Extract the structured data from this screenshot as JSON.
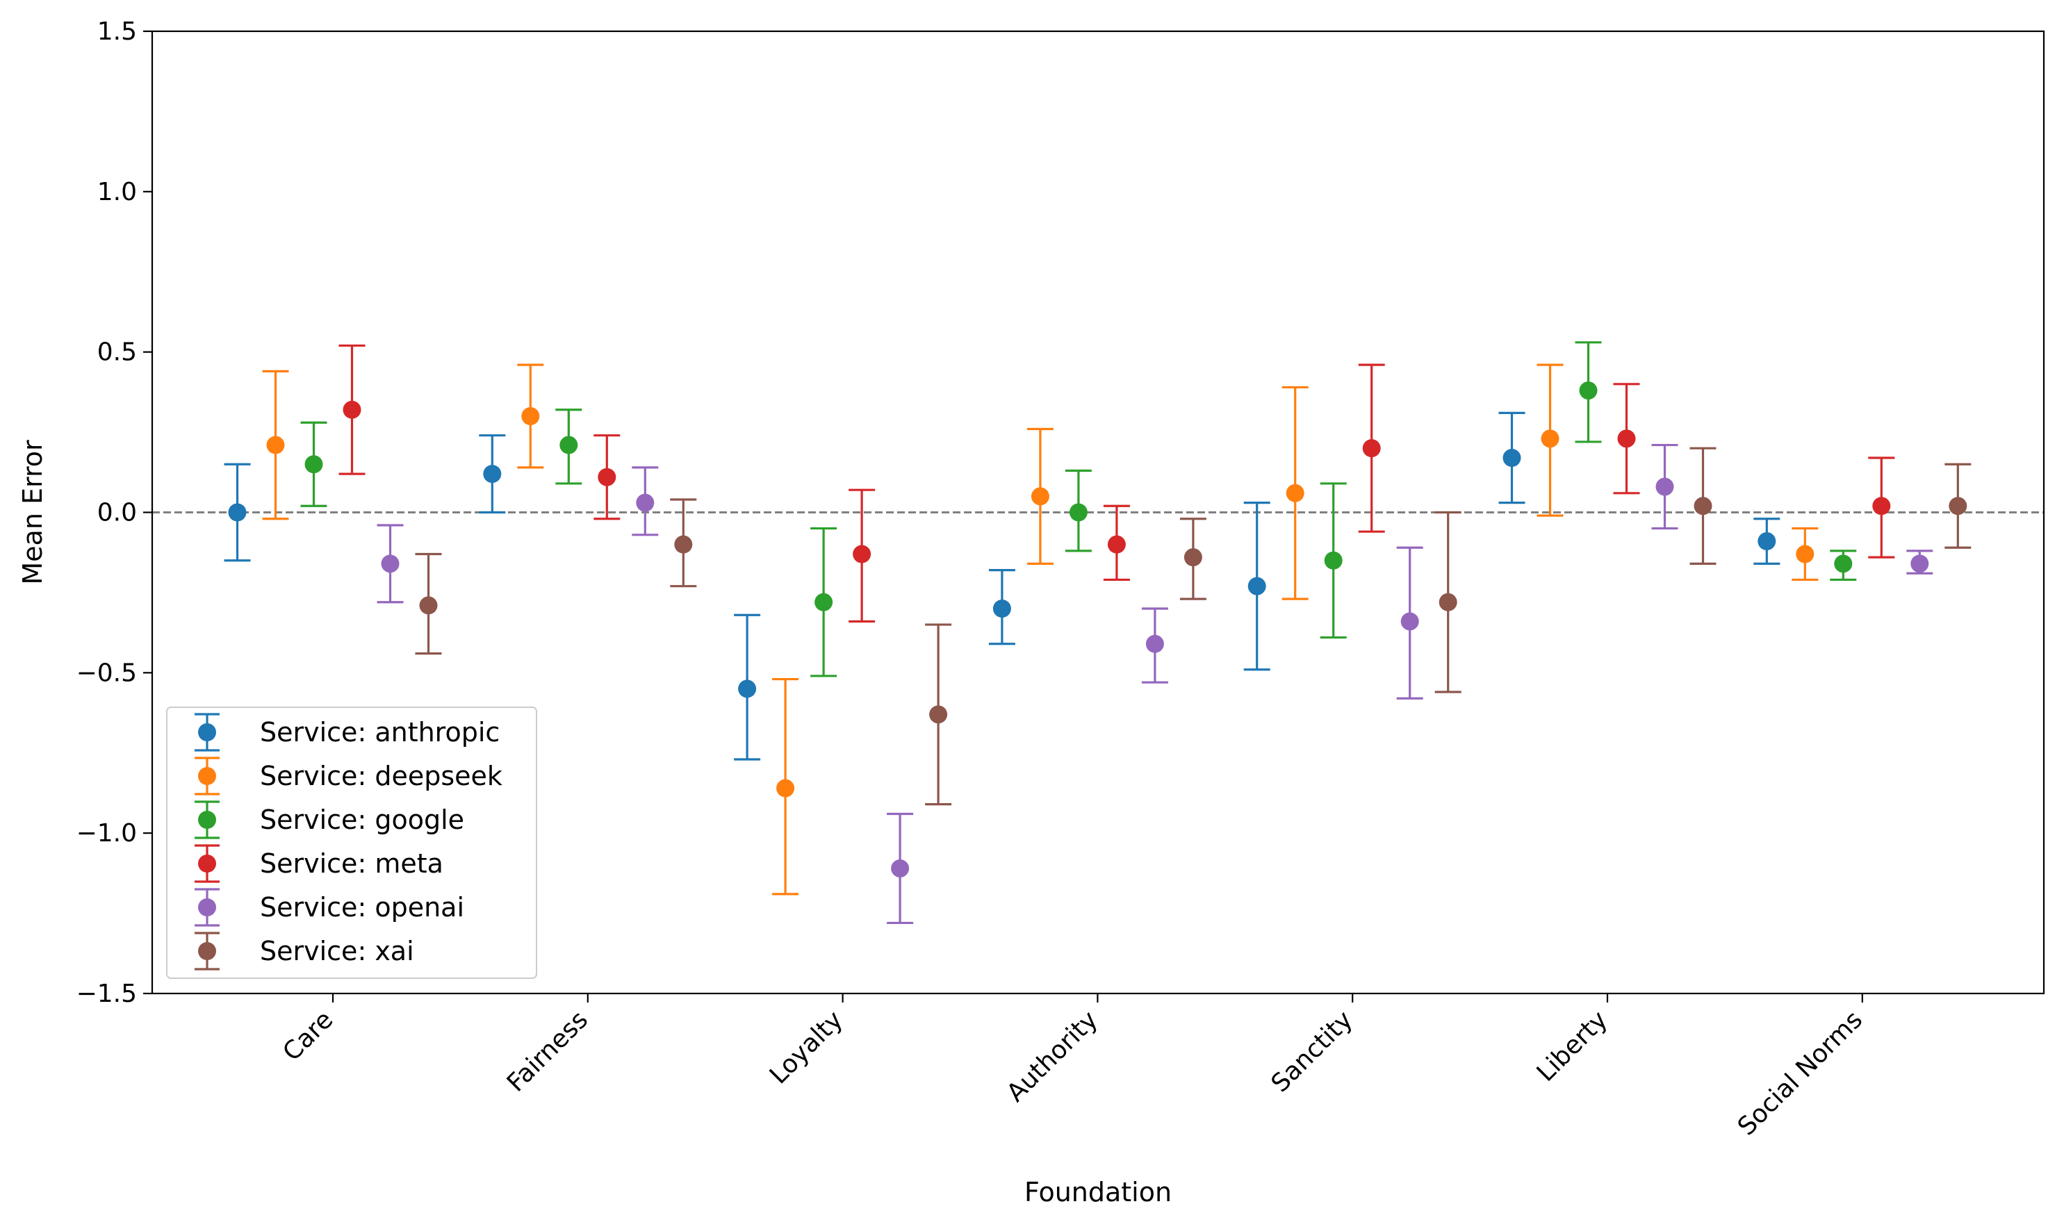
{
  "chart_data": {
    "type": "scatter",
    "subtype": "errorbar",
    "title": "",
    "xlabel": "Foundation",
    "ylabel": "Mean Error",
    "ylim": [
      -1.5,
      1.5
    ],
    "yticks": [
      -1.5,
      -1.0,
      -0.5,
      0.0,
      0.5,
      1.0,
      1.5
    ],
    "ytick_labels": [
      "−1.5",
      "−1.0",
      "−0.5",
      "0.0",
      "0.5",
      "1.0",
      "1.5"
    ],
    "categories": [
      "Care",
      "Fairness",
      "Loyalty",
      "Authority",
      "Sanctity",
      "Liberty",
      "Social Norms"
    ],
    "reference_line": {
      "y": 0.0,
      "style": "dashed",
      "color": "#808080"
    },
    "legend_position": "lower-left",
    "series": [
      {
        "name": "Service: anthropic",
        "color": "#1f77b4",
        "values": [
          0.0,
          0.12,
          -0.55,
          -0.3,
          -0.23,
          0.17,
          -0.09
        ],
        "lower": [
          -0.15,
          0.0,
          -0.77,
          -0.41,
          -0.49,
          0.03,
          -0.16
        ],
        "upper": [
          0.15,
          0.24,
          -0.32,
          -0.18,
          0.03,
          0.31,
          -0.02
        ]
      },
      {
        "name": "Service: deepseek",
        "color": "#ff7f0e",
        "values": [
          0.21,
          0.3,
          -0.86,
          0.05,
          0.06,
          0.23,
          -0.13
        ],
        "lower": [
          -0.02,
          0.14,
          -1.19,
          -0.16,
          -0.27,
          -0.01,
          -0.21
        ],
        "upper": [
          0.44,
          0.46,
          -0.52,
          0.26,
          0.39,
          0.46,
          -0.05
        ]
      },
      {
        "name": "Service: google",
        "color": "#2ca02c",
        "values": [
          0.15,
          0.21,
          -0.28,
          0.0,
          -0.15,
          0.38,
          -0.16
        ],
        "lower": [
          0.02,
          0.09,
          -0.51,
          -0.12,
          -0.39,
          0.22,
          -0.21
        ],
        "upper": [
          0.28,
          0.32,
          -0.05,
          0.13,
          0.09,
          0.53,
          -0.12
        ]
      },
      {
        "name": "Service: meta",
        "color": "#d62728",
        "values": [
          0.32,
          0.11,
          -0.13,
          -0.1,
          0.2,
          0.23,
          0.02
        ],
        "lower": [
          0.12,
          -0.02,
          -0.34,
          -0.21,
          -0.06,
          0.06,
          -0.14
        ],
        "upper": [
          0.52,
          0.24,
          0.07,
          0.02,
          0.46,
          0.4,
          0.17
        ]
      },
      {
        "name": "Service: openai",
        "color": "#9467bd",
        "values": [
          -0.16,
          0.03,
          -1.11,
          -0.41,
          -0.34,
          0.08,
          -0.16
        ],
        "lower": [
          -0.28,
          -0.07,
          -1.28,
          -0.53,
          -0.58,
          -0.05,
          -0.19
        ],
        "upper": [
          -0.04,
          0.14,
          -0.94,
          -0.3,
          -0.11,
          0.21,
          -0.12
        ]
      },
      {
        "name": "Service: xai",
        "color": "#8c564b",
        "values": [
          -0.29,
          -0.1,
          -0.63,
          -0.14,
          -0.28,
          0.02,
          0.02
        ],
        "lower": [
          -0.44,
          -0.23,
          -0.91,
          -0.27,
          -0.56,
          -0.16,
          -0.11
        ],
        "upper": [
          -0.13,
          0.04,
          -0.35,
          -0.02,
          0.0,
          0.2,
          0.15
        ]
      }
    ]
  }
}
